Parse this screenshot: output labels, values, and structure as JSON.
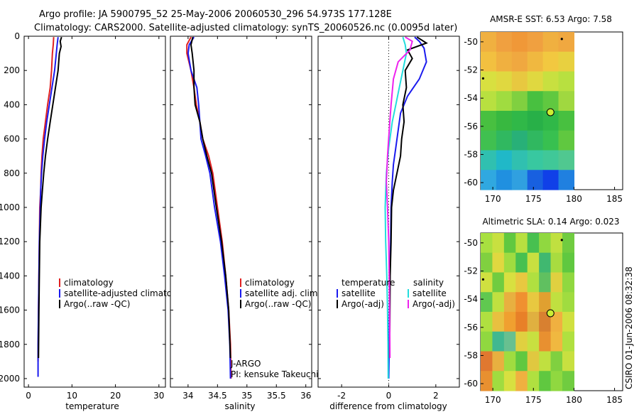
{
  "title": {
    "line1": "Argo profile: JA 5900795_52 25-May-2006 20060530_296 54.973S 177.128E",
    "line2": "Climatology: CARS2000. Satellite-adjusted climatology: synTS_20060526.nc (0.0095d later)"
  },
  "watermark": "CSIRO 01-Jun-2006 08:32:38",
  "colors": {
    "climatology": "#e02020",
    "satellite": "#1a1aee",
    "argo": "#000000",
    "sal_satellite": "#22dddd",
    "sal_argo": "#ee22ee",
    "marker_fill": "#ccee33"
  },
  "chart_data": [
    {
      "id": "temperature",
      "type": "line",
      "xlabel": "temperature",
      "ylabel": "",
      "xlim": [
        -1,
        31.5
      ],
      "ylim": [
        2050,
        0
      ],
      "xticks": [
        0,
        10,
        20,
        30
      ],
      "xtick_labels": [
        "0",
        "10",
        "20",
        "30"
      ],
      "yticks": [
        0,
        200,
        400,
        600,
        800,
        1000,
        1200,
        1400,
        1600,
        1800,
        2000
      ],
      "ytick_labels": [
        "0",
        "200",
        "400",
        "600",
        "800",
        "1000",
        "1200",
        "1400",
        "1600",
        "1800",
        "2000"
      ],
      "legend": [
        "climatology",
        "satellite-adjusted climatology",
        "Argo(..raw -QC)"
      ],
      "series": [
        {
          "name": "climatology",
          "color": "#e02020",
          "x": [
            5.8,
            5.7,
            5.5,
            5.3,
            5.0,
            4.4,
            3.9,
            3.4,
            3.1,
            2.9,
            2.8,
            2.6,
            2.5,
            2.4,
            2.3,
            2.2
          ],
          "y": [
            5,
            50,
            100,
            200,
            300,
            400,
            500,
            600,
            700,
            800,
            900,
            1000,
            1200,
            1400,
            1600,
            1900
          ]
        },
        {
          "name": "satellite-adjusted climatology",
          "color": "#1a1aee",
          "x": [
            6.8,
            6.6,
            6.4,
            6.0,
            5.4,
            4.8,
            4.2,
            3.7,
            3.3,
            3.0,
            2.8,
            2.7,
            2.5,
            2.4,
            2.3,
            2.2,
            2.2
          ],
          "y": [
            5,
            50,
            100,
            200,
            300,
            400,
            500,
            600,
            700,
            800,
            900,
            1000,
            1200,
            1400,
            1600,
            1800,
            1990
          ]
        },
        {
          "name": "Argo(..raw -QC)",
          "color": "#000000",
          "x": [
            7.6,
            7.3,
            7.5,
            7.1,
            6.8,
            6.2,
            5.6,
            5.0,
            4.4,
            3.9,
            3.5,
            3.2,
            2.9,
            2.6,
            2.5,
            2.4,
            2.3
          ],
          "y": [
            5,
            30,
            60,
            100,
            200,
            300,
            400,
            500,
            600,
            700,
            800,
            900,
            1000,
            1200,
            1400,
            1600,
            1880
          ]
        }
      ]
    },
    {
      "id": "salinity",
      "type": "line",
      "xlabel": "salinity",
      "ylabel": "",
      "xlim": [
        33.7,
        36.1
      ],
      "ylim": [
        2050,
        0
      ],
      "xticks": [
        34,
        34.5,
        35,
        35.5,
        36
      ],
      "xtick_labels": [
        "34",
        "34.5",
        "35",
        "35.5",
        "36"
      ],
      "legend": [
        "climatology",
        "satellite adj. clim.",
        "Argo(..raw -QC)"
      ],
      "annotations": [
        "J-ARGO",
        "PI: kensuke Takeuchi"
      ],
      "series": [
        {
          "name": "climatology",
          "color": "#e02020",
          "x": [
            34.05,
            33.98,
            33.98,
            34.05,
            34.1,
            34.14,
            34.2,
            34.25,
            34.35,
            34.42,
            34.5,
            34.58,
            34.64,
            34.69,
            34.72,
            34.73
          ],
          "y": [
            5,
            50,
            100,
            200,
            300,
            400,
            500,
            600,
            700,
            800,
            1000,
            1200,
            1400,
            1600,
            1800,
            2000
          ]
        },
        {
          "name": "satellite adj. clim.",
          "color": "#1a1aee",
          "x": [
            34.1,
            34.02,
            34.0,
            34.05,
            34.15,
            34.18,
            34.2,
            34.22,
            34.3,
            34.37,
            34.45,
            34.55,
            34.62,
            34.68,
            34.71,
            34.72
          ],
          "y": [
            5,
            50,
            100,
            200,
            300,
            400,
            500,
            600,
            700,
            800,
            1000,
            1200,
            1400,
            1600,
            1800,
            2000
          ]
        },
        {
          "name": "Argo(..raw -QC)",
          "color": "#000000",
          "x": [
            34.08,
            34.05,
            34.07,
            34.1,
            34.1,
            34.12,
            34.2,
            34.25,
            34.32,
            34.4,
            34.48,
            34.57,
            34.64,
            34.69,
            34.72
          ],
          "y": [
            5,
            50,
            100,
            200,
            300,
            400,
            500,
            600,
            700,
            800,
            1000,
            1200,
            1400,
            1600,
            1880
          ]
        }
      ]
    },
    {
      "id": "difference",
      "type": "line",
      "xlabel": "difference from climatology",
      "ylabel": "",
      "xlim": [
        -3.0,
        3.0
      ],
      "ylim": [
        2050,
        0
      ],
      "xticks": [
        -2,
        0,
        2
      ],
      "xtick_labels": [
        "-2",
        "0",
        "2"
      ],
      "legend": [
        "temperature",
        "satellite",
        "Argo(-adj)",
        "salinity",
        "satellite",
        "Argo(-adj)"
      ],
      "series": [
        {
          "name": "temperature satellite",
          "color": "#1a1aee",
          "x": [
            1.1,
            1.3,
            1.5,
            1.6,
            1.3,
            0.8,
            0.5,
            0.4,
            0.3,
            0.2,
            0.15,
            0.1,
            0.08,
            0.05,
            0.03,
            0.02,
            0.0
          ],
          "y": [
            5,
            30,
            70,
            150,
            250,
            350,
            450,
            550,
            650,
            750,
            850,
            1000,
            1200,
            1400,
            1600,
            1800,
            2000
          ]
        },
        {
          "name": "temperature Argo(-adj)",
          "color": "#000000",
          "x": [
            1.2,
            1.6,
            0.8,
            1.0,
            0.7,
            0.75,
            0.6,
            0.65,
            0.55,
            0.5,
            0.35,
            0.2,
            0.12,
            0.1,
            0.06,
            0.05,
            0.04
          ],
          "y": [
            5,
            40,
            80,
            130,
            200,
            300,
            400,
            500,
            600,
            700,
            800,
            900,
            1000,
            1200,
            1400,
            1600,
            1880
          ]
        },
        {
          "name": "salinity satellite",
          "color": "#22dddd",
          "x": [
            0.6,
            0.7,
            0.75,
            0.6,
            0.45,
            0.3,
            0.15,
            0.0,
            -0.1,
            -0.15,
            -0.13,
            -0.08,
            -0.05,
            -0.03,
            -0.02
          ],
          "y": [
            5,
            50,
            100,
            200,
            300,
            400,
            500,
            650,
            800,
            1000,
            1200,
            1400,
            1600,
            1800,
            2000
          ]
        },
        {
          "name": "salinity Argo(-adj)",
          "color": "#ee22ee",
          "x": [
            0.7,
            1.0,
            0.9,
            0.4,
            0.2,
            0.1,
            0.02,
            -0.05,
            -0.1,
            -0.05,
            0.0,
            0.02,
            0.04,
            0.05
          ],
          "y": [
            5,
            30,
            80,
            150,
            250,
            400,
            550,
            700,
            850,
            1000,
            1200,
            1400,
            1600,
            1880
          ]
        }
      ]
    },
    {
      "id": "sst-map",
      "type": "heatmap",
      "title": "AMSR-E SST: 6.53 Argo: 7.58",
      "xlim": [
        168.5,
        186.0
      ],
      "ylim": [
        -60.5,
        -49.3
      ],
      "xticks": [
        170,
        175,
        180,
        185
      ],
      "xtick_labels": [
        "170",
        "175",
        "180",
        "185"
      ],
      "yticks": [
        -50,
        -52,
        -54,
        -56,
        -58,
        -60
      ],
      "ytick_labels": [
        "-50",
        "-52",
        "-54",
        "-56",
        "-58",
        "-60"
      ],
      "data_extent": {
        "lon": [
          168.5,
          180.0
        ],
        "lat": [
          -60.5,
          -49.3
        ]
      },
      "grid": [
        [
          "#f0b040",
          "#f0a040",
          "#f09838",
          "#f0a040",
          "#f0b040",
          "#f0a840"
        ],
        [
          "#f2c040",
          "#f0b040",
          "#f0a840",
          "#f0b840",
          "#f2c840",
          "#e8d040"
        ],
        [
          "#d8e040",
          "#e0d840",
          "#e8c840",
          "#e0d840",
          "#c8e040",
          "#b8e040"
        ],
        [
          "#b8e040",
          "#a0dc40",
          "#80d040",
          "#48c040",
          "#60c840",
          "#a0d840"
        ],
        [
          "#48c040",
          "#38b840",
          "#30b848",
          "#28b048",
          "#30b848",
          "#48c040"
        ],
        [
          "#40c050",
          "#30b860",
          "#28b078",
          "#30b860",
          "#38c050",
          "#60c840"
        ],
        [
          "#30c0b0",
          "#20b8c8",
          "#30c0b0",
          "#38c8a0",
          "#40c898",
          "#50c890"
        ],
        [
          "#30a8e0",
          "#2090e0",
          "#30a0e0",
          "#1860e0",
          "#1040e8",
          "#2080e0"
        ]
      ],
      "markers": [
        {
          "lon": 177.1,
          "lat": -55.0,
          "kind": "float"
        },
        {
          "lon": 168.8,
          "lat": -52.6,
          "kind": "dot"
        },
        {
          "lon": 178.5,
          "lat": -49.8,
          "kind": "dot"
        }
      ]
    },
    {
      "id": "sla-map",
      "type": "heatmap",
      "title": "Altimetric SLA: 0.14 Argo: 0.023",
      "xlim": [
        168.5,
        186.0
      ],
      "ylim": [
        -60.5,
        -49.3
      ],
      "xticks": [
        170,
        175,
        180,
        185
      ],
      "xtick_labels": [
        "170",
        "175",
        "180",
        "185"
      ],
      "yticks": [
        -50,
        -52,
        -54,
        -56,
        -58,
        -60
      ],
      "ytick_labels": [
        "-50",
        "-52",
        "-54",
        "-56",
        "-58",
        "-60"
      ],
      "data_extent": {
        "lon": [
          168.5,
          180.0
        ],
        "lat": [
          -60.5,
          -49.3
        ]
      },
      "grid": [
        [
          "#a8e040",
          "#c8e040",
          "#60c840",
          "#b8e040",
          "#48c050",
          "#90d840",
          "#c0e040",
          "#70cc40"
        ],
        [
          "#80d040",
          "#e0d840",
          "#a0dc40",
          "#48c050",
          "#c8e040",
          "#40b870",
          "#a8dc40",
          "#60c840"
        ],
        [
          "#d0e040",
          "#70cc40",
          "#d8e040",
          "#e8c840",
          "#b0e040",
          "#60c060",
          "#e0d040",
          "#90d840"
        ],
        [
          "#60c850",
          "#c0e040",
          "#e8b040",
          "#f09030",
          "#e8c840",
          "#e0a030",
          "#c0e040",
          "#a0dc40"
        ],
        [
          "#b0e040",
          "#e8c040",
          "#f0a030",
          "#e88028",
          "#e0b040",
          "#d88030",
          "#f0b040",
          "#d0e040"
        ],
        [
          "#90d840",
          "#40b890",
          "#68c090",
          "#e0d040",
          "#c8e040",
          "#e89030",
          "#f0b840",
          "#b0e040"
        ],
        [
          "#e07830",
          "#e8b040",
          "#a0dc40",
          "#60c840",
          "#e0c840",
          "#c0e040",
          "#80d040",
          "#c8e040"
        ],
        [
          "#e89030",
          "#a0dc40",
          "#d8e040",
          "#f0b040",
          "#b0e040",
          "#60c840",
          "#90d840",
          "#70cc40"
        ]
      ],
      "markers": [
        {
          "lon": 177.1,
          "lat": -55.0,
          "kind": "float"
        },
        {
          "lon": 168.8,
          "lat": -52.6,
          "kind": "dot"
        },
        {
          "lon": 178.5,
          "lat": -49.8,
          "kind": "dot"
        }
      ]
    }
  ]
}
